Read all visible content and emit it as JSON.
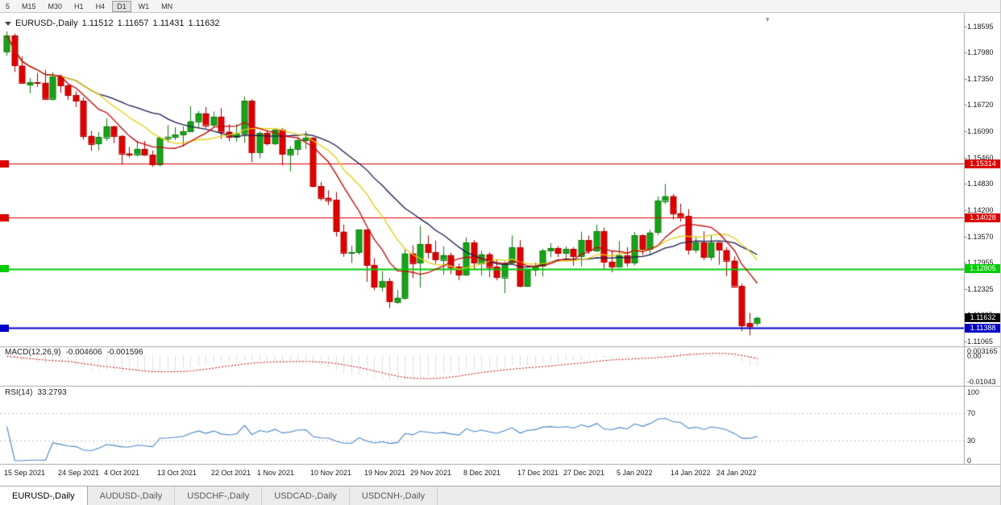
{
  "app": {
    "toolbar": {
      "timeframes": [
        "5",
        "M15",
        "M30",
        "H1",
        "H4",
        "D1",
        "W1",
        "MN"
      ],
      "active": "D1"
    },
    "tabs": [
      {
        "label": "EURUSD-,Daily",
        "active": true
      },
      {
        "label": "AUDUSD-,Daily",
        "active": false
      },
      {
        "label": "USDCHF-,Daily",
        "active": false
      },
      {
        "label": "USDCAD-,Daily",
        "active": false
      },
      {
        "label": "USDCNH-,Daily",
        "active": false
      }
    ],
    "icons": {
      "shift_marker": "▾"
    }
  },
  "chart": {
    "title": {
      "symbol": "EURUSD-,Daily",
      "open": "1.11512",
      "high": "1.11657",
      "low": "1.11431",
      "close": "1.11632"
    },
    "colors": {
      "bull": "#17A317",
      "bull_border": "#0E7C0E",
      "bear": "#E00000",
      "bear_border": "#AF0000",
      "ma_fast": "#C80000",
      "ma_mid": "#E3CF0C",
      "ma_slow": "#1A1A4E",
      "macd_hist": "#A8A8A8",
      "macd_signal": "#C80000",
      "rsi": "#4A86C8",
      "level_red": "#DC0000",
      "level_green": "#00CC00",
      "level_blue": "#0000C8",
      "current_tag": "#000000"
    },
    "levels": [
      {
        "price": 1.15314,
        "label": "1.15314",
        "color": "#DC0000",
        "width": 1
      },
      {
        "price": 1.14028,
        "label": "1.14028",
        "color": "#DC0000",
        "width": 1
      },
      {
        "price": 1.12805,
        "label": "1.12805",
        "color": "#00CC00",
        "width": 2
      },
      {
        "price": 1.11388,
        "label": "1.11388",
        "color": "#0000C8",
        "width": 2
      }
    ],
    "current_price": {
      "label": "1.11632",
      "value": 1.11632
    },
    "price_ticks": [
      "1.18595",
      "1.17980",
      "1.17350",
      "1.16720",
      "1.16090",
      "1.15460",
      "1.14830",
      "1.14200",
      "1.13570",
      "1.12955",
      "1.12325",
      "1.11695",
      "1.11065"
    ],
    "date_ticks": [
      {
        "index": 0,
        "label": "15 Sep 2021"
      },
      {
        "index": 7,
        "label": "24 Sep 2021"
      },
      {
        "index": 13,
        "label": "4 Oct 2021"
      },
      {
        "index": 20,
        "label": "13 Oct 2021"
      },
      {
        "index": 27,
        "label": "22 Oct 2021"
      },
      {
        "index": 33,
        "label": "1 Nov 2021"
      },
      {
        "index": 40,
        "label": "10 Nov 2021"
      },
      {
        "index": 47,
        "label": "19 Nov 2021"
      },
      {
        "index": 53,
        "label": "29 Nov 2021"
      },
      {
        "index": 60,
        "label": "8 Dec 2021"
      },
      {
        "index": 67,
        "label": "17 Dec 2021"
      },
      {
        "index": 73,
        "label": "27 Dec 2021"
      },
      {
        "index": 80,
        "label": "5 Jan 2022"
      },
      {
        "index": 87,
        "label": "14 Jan 2022"
      },
      {
        "index": 93,
        "label": "24 Jan 2022"
      }
    ],
    "macd": {
      "label": "MACD(12,26,9)",
      "value_main": "-0.004606",
      "value_signal": "-0.001596",
      "axis_max": "0.003165",
      "axis_zero": "0.00",
      "axis_min": "-0.01043"
    },
    "rsi": {
      "label": "RSI(14)",
      "value": "33.2793",
      "axis_labels": [
        "100",
        "70",
        "30",
        "0"
      ],
      "levels": [
        70,
        30
      ]
    }
  },
  "chart_data": {
    "type": "candlestick",
    "symbol": "EURUSD",
    "timeframe": "Daily",
    "ohlc_format": [
      "open",
      "high",
      "low",
      "close"
    ],
    "moving_averages": [
      {
        "period": 8,
        "color_key": "ma_fast"
      },
      {
        "period": 13,
        "color_key": "ma_mid"
      },
      {
        "period": 21,
        "color_key": "ma_slow"
      }
    ],
    "indicators": [
      {
        "type": "MACD",
        "fast": 12,
        "slow": 26,
        "signal": 9
      },
      {
        "type": "RSI",
        "period": 14
      }
    ],
    "candles": [
      [
        1.18,
        1.1848,
        1.179,
        1.1838
      ],
      [
        1.1838,
        1.1843,
        1.1751,
        1.1766
      ],
      [
        1.1766,
        1.1788,
        1.1724,
        1.1725
      ],
      [
        1.172,
        1.1736,
        1.17,
        1.1726
      ],
      [
        1.1726,
        1.1749,
        1.1715,
        1.1725
      ],
      [
        1.1725,
        1.1756,
        1.1684,
        1.1687
      ],
      [
        1.1687,
        1.175,
        1.1683,
        1.174
      ],
      [
        1.174,
        1.1745,
        1.1701,
        1.1718
      ],
      [
        1.1718,
        1.1722,
        1.1684,
        1.1695
      ],
      [
        1.1695,
        1.1705,
        1.1667,
        1.1682
      ],
      [
        1.1682,
        1.169,
        1.1589,
        1.1598
      ],
      [
        1.1598,
        1.161,
        1.1562,
        1.1579
      ],
      [
        1.1579,
        1.1608,
        1.1563,
        1.1595
      ],
      [
        1.1595,
        1.164,
        1.1586,
        1.1621
      ],
      [
        1.1621,
        1.1622,
        1.1581,
        1.1598
      ],
      [
        1.1598,
        1.16,
        1.1529,
        1.1556
      ],
      [
        1.1556,
        1.1572,
        1.1546,
        1.1554
      ],
      [
        1.1554,
        1.1586,
        1.1549,
        1.1567
      ],
      [
        1.1567,
        1.1586,
        1.155,
        1.1553
      ],
      [
        1.1553,
        1.1563,
        1.1524,
        1.1529
      ],
      [
        1.1529,
        1.1597,
        1.1525,
        1.1593
      ],
      [
        1.1593,
        1.1624,
        1.1582,
        1.1596
      ],
      [
        1.1596,
        1.1619,
        1.1588,
        1.1601
      ],
      [
        1.1601,
        1.1621,
        1.1572,
        1.1609
      ],
      [
        1.1609,
        1.1669,
        1.1609,
        1.1633
      ],
      [
        1.1633,
        1.1658,
        1.1617,
        1.1652
      ],
      [
        1.1652,
        1.1667,
        1.1617,
        1.1624
      ],
      [
        1.1624,
        1.1656,
        1.162,
        1.1644
      ],
      [
        1.1644,
        1.1664,
        1.1591,
        1.1608
      ],
      [
        1.1608,
        1.1626,
        1.1585,
        1.1596
      ],
      [
        1.1596,
        1.1626,
        1.1584,
        1.1604
      ],
      [
        1.1604,
        1.1692,
        1.1582,
        1.1682
      ],
      [
        1.1682,
        1.1686,
        1.1535,
        1.1559
      ],
      [
        1.1559,
        1.1609,
        1.1545,
        1.1605
      ],
      [
        1.1605,
        1.1612,
        1.1575,
        1.158
      ],
      [
        1.158,
        1.1616,
        1.1576,
        1.1612
      ],
      [
        1.1612,
        1.1617,
        1.1527,
        1.1554
      ],
      [
        1.1554,
        1.1574,
        1.1513,
        1.1567
      ],
      [
        1.1567,
        1.1595,
        1.1552,
        1.1588
      ],
      [
        1.1588,
        1.1609,
        1.1567,
        1.1593
      ],
      [
        1.1593,
        1.1595,
        1.1475,
        1.1478
      ],
      [
        1.1478,
        1.1488,
        1.1443,
        1.145
      ],
      [
        1.145,
        1.1468,
        1.1433,
        1.1445
      ],
      [
        1.1445,
        1.1464,
        1.1357,
        1.1369
      ],
      [
        1.1369,
        1.1386,
        1.1309,
        1.1319
      ],
      [
        1.1319,
        1.1336,
        1.1294,
        1.132
      ],
      [
        1.132,
        1.1374,
        1.1314,
        1.1374
      ],
      [
        1.1374,
        1.1375,
        1.1249,
        1.1289
      ],
      [
        1.1289,
        1.1306,
        1.1229,
        1.1237
      ],
      [
        1.1237,
        1.1275,
        1.1226,
        1.125
      ],
      [
        1.125,
        1.1258,
        1.1186,
        1.1201
      ],
      [
        1.1201,
        1.123,
        1.1196,
        1.1211
      ],
      [
        1.1211,
        1.1327,
        1.1206,
        1.1317
      ],
      [
        1.1317,
        1.1336,
        1.1258,
        1.1294
      ],
      [
        1.1294,
        1.1383,
        1.1235,
        1.1339
      ],
      [
        1.1339,
        1.136,
        1.1305,
        1.132
      ],
      [
        1.132,
        1.1348,
        1.1293,
        1.1302
      ],
      [
        1.1302,
        1.1334,
        1.1266,
        1.1313
      ],
      [
        1.1313,
        1.1319,
        1.1267,
        1.1285
      ],
      [
        1.1285,
        1.1293,
        1.1253,
        1.1266
      ],
      [
        1.1266,
        1.1355,
        1.1263,
        1.1343
      ],
      [
        1.1343,
        1.1349,
        1.1279,
        1.1294
      ],
      [
        1.1294,
        1.1324,
        1.1264,
        1.1315
      ],
      [
        1.1315,
        1.132,
        1.126,
        1.1285
      ],
      [
        1.1285,
        1.1302,
        1.1253,
        1.126
      ],
      [
        1.126,
        1.1298,
        1.1222,
        1.1294
      ],
      [
        1.1294,
        1.136,
        1.1291,
        1.1331
      ],
      [
        1.1331,
        1.1349,
        1.1236,
        1.1239
      ],
      [
        1.1239,
        1.128,
        1.1237,
        1.1278
      ],
      [
        1.1278,
        1.1295,
        1.1262,
        1.1287
      ],
      [
        1.1287,
        1.1328,
        1.1262,
        1.1324
      ],
      [
        1.1324,
        1.1342,
        1.1308,
        1.133
      ],
      [
        1.133,
        1.1334,
        1.1308,
        1.1318
      ],
      [
        1.1318,
        1.1334,
        1.1304,
        1.1327
      ],
      [
        1.1327,
        1.1332,
        1.1288,
        1.131
      ],
      [
        1.131,
        1.1369,
        1.1286,
        1.1349
      ],
      [
        1.1349,
        1.136,
        1.1316,
        1.1324
      ],
      [
        1.1324,
        1.1386,
        1.1321,
        1.137
      ],
      [
        1.137,
        1.1379,
        1.1279,
        1.1297
      ],
      [
        1.1297,
        1.1324,
        1.1272,
        1.1286
      ],
      [
        1.1286,
        1.1347,
        1.1284,
        1.1312
      ],
      [
        1.1312,
        1.1332,
        1.1285,
        1.1295
      ],
      [
        1.1295,
        1.1368,
        1.1288,
        1.136
      ],
      [
        1.136,
        1.1363,
        1.1313,
        1.1328
      ],
      [
        1.1328,
        1.1374,
        1.1314,
        1.1367
      ],
      [
        1.1367,
        1.1453,
        1.1361,
        1.1443
      ],
      [
        1.1443,
        1.1483,
        1.1435,
        1.1454
      ],
      [
        1.1454,
        1.1459,
        1.1398,
        1.1413
      ],
      [
        1.1413,
        1.1436,
        1.1393,
        1.1406
      ],
      [
        1.1406,
        1.1423,
        1.1314,
        1.1325
      ],
      [
        1.1325,
        1.1358,
        1.1318,
        1.1343
      ],
      [
        1.1343,
        1.137,
        1.1301,
        1.1308
      ],
      [
        1.1308,
        1.136,
        1.13,
        1.1343
      ],
      [
        1.1343,
        1.1344,
        1.129,
        1.1325
      ],
      [
        1.1325,
        1.1332,
        1.1263,
        1.13
      ],
      [
        1.13,
        1.131,
        1.1235,
        1.1239
      ],
      [
        1.1239,
        1.1245,
        1.1131,
        1.1144
      ],
      [
        1.115,
        1.1175,
        1.1121,
        1.1143
      ],
      [
        1.11512,
        1.11657,
        1.11431,
        1.11632
      ]
    ]
  }
}
